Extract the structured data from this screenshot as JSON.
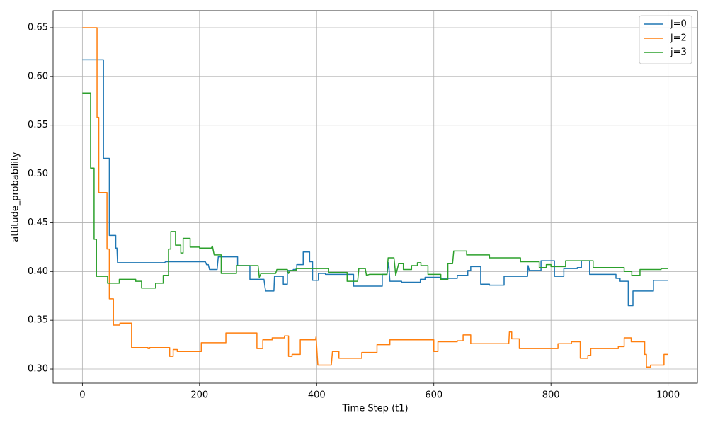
{
  "chart_data": {
    "type": "line",
    "xlabel": "Time Step (t1)",
    "ylabel": "attitude_probability",
    "xlim": [
      -50,
      1050
    ],
    "ylim": [
      0.2855,
      0.6674
    ],
    "xticks": [
      0,
      200,
      400,
      600,
      800,
      1000
    ],
    "yticks": [
      {
        "value": 0.3,
        "label": "0.30"
      },
      0.35,
      {
        "value": 0.4,
        "label": "0.40"
      },
      0.45,
      {
        "value": 0.5,
        "label": "0.50"
      },
      0.55,
      {
        "value": 0.6,
        "label": "0.60"
      },
      0.65
    ],
    "grid": true,
    "legend": "upper right",
    "series": [
      {
        "name": "j=0",
        "color": "#1f77b4",
        "x": [
          0,
          36,
          36,
          46,
          46,
          57,
          57,
          59,
          60,
          140,
          142,
          210,
          212,
          215,
          217,
          230,
          232,
          265,
          265,
          286,
          286,
          310,
          312,
          313,
          327,
          328,
          343,
          343,
          350,
          350,
          360,
          360,
          366,
          366,
          377,
          377,
          388,
          388,
          393,
          393,
          403,
          403,
          415,
          415,
          463,
          463,
          512,
          512,
          520,
          523,
          525,
          545,
          545,
          577,
          577,
          585,
          585,
          612,
          612,
          640,
          640,
          658,
          658,
          663,
          663,
          680,
          680,
          695,
          695,
          720,
          720,
          760,
          761,
          763,
          783,
          783,
          806,
          806,
          822,
          822,
          845,
          845,
          852,
          852,
          866,
          866,
          911,
          911,
          918,
          918,
          932,
          932,
          940,
          940,
          975,
          975,
          1000
        ],
        "values": [
          0.617,
          0.617,
          0.516,
          0.516,
          0.437,
          0.437,
          0.424,
          0.424,
          0.409,
          0.409,
          0.41,
          0.41,
          0.407,
          0.407,
          0.402,
          0.402,
          0.415,
          0.415,
          0.406,
          0.406,
          0.392,
          0.392,
          0.383,
          0.38,
          0.38,
          0.395,
          0.395,
          0.387,
          0.387,
          0.401,
          0.401,
          0.402,
          0.402,
          0.407,
          0.407,
          0.42,
          0.42,
          0.41,
          0.41,
          0.391,
          0.391,
          0.398,
          0.398,
          0.397,
          0.397,
          0.385,
          0.385,
          0.397,
          0.397,
          0.409,
          0.39,
          0.39,
          0.389,
          0.389,
          0.392,
          0.392,
          0.394,
          0.394,
          0.393,
          0.393,
          0.396,
          0.396,
          0.401,
          0.401,
          0.405,
          0.405,
          0.387,
          0.387,
          0.386,
          0.386,
          0.395,
          0.395,
          0.406,
          0.401,
          0.401,
          0.411,
          0.411,
          0.395,
          0.395,
          0.403,
          0.403,
          0.404,
          0.404,
          0.411,
          0.411,
          0.397,
          0.397,
          0.393,
          0.393,
          0.39,
          0.39,
          0.365,
          0.365,
          0.38,
          0.38,
          0.391,
          0.391
        ]
      },
      {
        "name": "j=2",
        "color": "#ff7f0e",
        "x": [
          0,
          25,
          25,
          28,
          28,
          42,
          42,
          46,
          46,
          53,
          53,
          64,
          64,
          84,
          84,
          112,
          112,
          115,
          115,
          149,
          149,
          155,
          155,
          162,
          162,
          203,
          203,
          245,
          245,
          298,
          298,
          308,
          308,
          324,
          324,
          345,
          345,
          352,
          352,
          358,
          358,
          372,
          372,
          398,
          399,
          402,
          425,
          427,
          438,
          438,
          477,
          477,
          503,
          503,
          525,
          525,
          600,
          600,
          607,
          607,
          640,
          640,
          650,
          650,
          663,
          663,
          728,
          729,
          733,
          733,
          746,
          746,
          812,
          812,
          835,
          835,
          850,
          850,
          863,
          863,
          868,
          868,
          915,
          915,
          925,
          925,
          937,
          937,
          960,
          960,
          963,
          963,
          970,
          970,
          993,
          993,
          1000
        ],
        "values": [
          0.65,
          0.65,
          0.558,
          0.558,
          0.481,
          0.481,
          0.423,
          0.423,
          0.372,
          0.372,
          0.345,
          0.345,
          0.347,
          0.347,
          0.322,
          0.322,
          0.321,
          0.321,
          0.322,
          0.322,
          0.313,
          0.313,
          0.32,
          0.32,
          0.318,
          0.318,
          0.327,
          0.327,
          0.337,
          0.337,
          0.321,
          0.321,
          0.33,
          0.33,
          0.332,
          0.332,
          0.334,
          0.334,
          0.313,
          0.313,
          0.315,
          0.315,
          0.33,
          0.33,
          0.333,
          0.304,
          0.304,
          0.318,
          0.318,
          0.311,
          0.311,
          0.317,
          0.317,
          0.325,
          0.325,
          0.33,
          0.33,
          0.318,
          0.318,
          0.328,
          0.328,
          0.329,
          0.329,
          0.335,
          0.335,
          0.326,
          0.326,
          0.338,
          0.338,
          0.331,
          0.331,
          0.321,
          0.321,
          0.326,
          0.326,
          0.328,
          0.328,
          0.311,
          0.311,
          0.314,
          0.314,
          0.321,
          0.321,
          0.323,
          0.323,
          0.332,
          0.332,
          0.328,
          0.328,
          0.315,
          0.315,
          0.302,
          0.302,
          0.304,
          0.304,
          0.315,
          0.315
        ]
      },
      {
        "name": "j=3",
        "color": "#2ca02c",
        "x": [
          0,
          14,
          14,
          20,
          20,
          24,
          24,
          43,
          43,
          63,
          63,
          91,
          91,
          101,
          101,
          125,
          125,
          138,
          138,
          147,
          147,
          151,
          151,
          159,
          159,
          168,
          168,
          172,
          172,
          184,
          184,
          200,
          200,
          220,
          222,
          225,
          237,
          237,
          263,
          263,
          300,
          302,
          305,
          330,
          332,
          350,
          352,
          355,
          365,
          365,
          420,
          420,
          452,
          452,
          470,
          472,
          483,
          485,
          490,
          520,
          522,
          532,
          535,
          540,
          548,
          548,
          562,
          562,
          572,
          572,
          578,
          578,
          590,
          590,
          612,
          612,
          624,
          624,
          632,
          634,
          656,
          656,
          695,
          695,
          748,
          748,
          780,
          780,
          792,
          792,
          800,
          800,
          825,
          825,
          872,
          872,
          925,
          925,
          938,
          938,
          952,
          952,
          988,
          988,
          1000
        ],
        "values": [
          0.583,
          0.583,
          0.506,
          0.506,
          0.433,
          0.433,
          0.395,
          0.395,
          0.388,
          0.388,
          0.392,
          0.392,
          0.39,
          0.39,
          0.383,
          0.383,
          0.388,
          0.388,
          0.396,
          0.396,
          0.423,
          0.423,
          0.441,
          0.441,
          0.427,
          0.427,
          0.419,
          0.419,
          0.434,
          0.434,
          0.425,
          0.425,
          0.424,
          0.424,
          0.426,
          0.417,
          0.417,
          0.398,
          0.398,
          0.406,
          0.406,
          0.394,
          0.398,
          0.398,
          0.402,
          0.402,
          0.398,
          0.401,
          0.401,
          0.403,
          0.403,
          0.399,
          0.399,
          0.39,
          0.39,
          0.403,
          0.403,
          0.396,
          0.397,
          0.397,
          0.414,
          0.414,
          0.396,
          0.408,
          0.408,
          0.402,
          0.402,
          0.406,
          0.406,
          0.409,
          0.409,
          0.406,
          0.406,
          0.397,
          0.397,
          0.392,
          0.392,
          0.408,
          0.408,
          0.421,
          0.421,
          0.417,
          0.417,
          0.414,
          0.414,
          0.41,
          0.41,
          0.404,
          0.404,
          0.407,
          0.407,
          0.405,
          0.405,
          0.411,
          0.411,
          0.404,
          0.404,
          0.4,
          0.4,
          0.396,
          0.396,
          0.402,
          0.402,
          0.403,
          0.403
        ]
      }
    ]
  }
}
